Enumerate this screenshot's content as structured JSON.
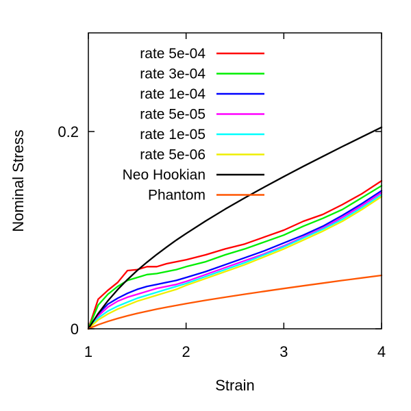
{
  "chart_data": {
    "type": "line",
    "title": "",
    "xlabel": "Strain",
    "ylabel": "Nominal Stress",
    "xlim": [
      1,
      4
    ],
    "ylim": [
      0,
      0.3
    ],
    "x_ticks": [
      {
        "value": 1,
        "label": "1"
      },
      {
        "value": 2,
        "label": "2"
      },
      {
        "value": 3,
        "label": "3"
      },
      {
        "value": 4,
        "label": "4"
      }
    ],
    "y_ticks": [
      {
        "value": 0,
        "label": "0"
      },
      {
        "value": 0.2,
        "label": "0.2"
      }
    ],
    "grid": false,
    "legend_position": "top-left",
    "series": [
      {
        "name": "rate 5e-04",
        "color": "#ff0000",
        "x": [
          1,
          1.1,
          1.2,
          1.3,
          1.4,
          1.5,
          1.6,
          1.7,
          1.8,
          1.9,
          2.0,
          2.2,
          2.4,
          2.6,
          2.8,
          3.0,
          3.2,
          3.4,
          3.6,
          3.8,
          4.0
        ],
        "y": [
          0,
          0.03,
          0.039,
          0.047,
          0.059,
          0.06,
          0.063,
          0.063,
          0.066,
          0.068,
          0.07,
          0.075,
          0.081,
          0.086,
          0.093,
          0.1,
          0.109,
          0.116,
          0.126,
          0.137,
          0.15
        ]
      },
      {
        "name": "rate 3e-04",
        "color": "#00ee00",
        "x": [
          1,
          1.1,
          1.2,
          1.3,
          1.4,
          1.5,
          1.6,
          1.7,
          1.8,
          1.9,
          2.0,
          2.2,
          2.4,
          2.6,
          2.8,
          3.0,
          3.2,
          3.4,
          3.6,
          3.8,
          4.0
        ],
        "y": [
          0,
          0.024,
          0.035,
          0.043,
          0.049,
          0.052,
          0.055,
          0.056,
          0.058,
          0.06,
          0.063,
          0.068,
          0.075,
          0.081,
          0.088,
          0.095,
          0.104,
          0.112,
          0.121,
          0.133,
          0.145
        ]
      },
      {
        "name": "rate 1e-04",
        "color": "#0000ff",
        "x": [
          1,
          1.1,
          1.2,
          1.3,
          1.4,
          1.5,
          1.6,
          1.7,
          1.8,
          1.9,
          2.0,
          2.2,
          2.4,
          2.6,
          2.8,
          3.0,
          3.2,
          3.4,
          3.6,
          3.8,
          4.0
        ],
        "y": [
          0,
          0.015,
          0.025,
          0.031,
          0.036,
          0.04,
          0.043,
          0.045,
          0.047,
          0.049,
          0.052,
          0.058,
          0.065,
          0.072,
          0.079,
          0.087,
          0.095,
          0.104,
          0.115,
          0.127,
          0.14
        ]
      },
      {
        "name": "rate 5e-05",
        "color": "#ff00ff",
        "x": [
          1,
          1.1,
          1.2,
          1.3,
          1.4,
          1.5,
          1.6,
          1.7,
          1.8,
          1.9,
          2.0,
          2.2,
          2.4,
          2.6,
          2.8,
          3.0,
          3.2,
          3.4,
          3.6,
          3.8,
          4.0
        ],
        "y": [
          0,
          0.013,
          0.022,
          0.028,
          0.032,
          0.035,
          0.038,
          0.041,
          0.043,
          0.045,
          0.048,
          0.055,
          0.062,
          0.069,
          0.076,
          0.084,
          0.093,
          0.102,
          0.113,
          0.125,
          0.138
        ]
      },
      {
        "name": "rate 1e-05",
        "color": "#00ffff",
        "x": [
          1,
          1.1,
          1.2,
          1.3,
          1.4,
          1.5,
          1.6,
          1.7,
          1.8,
          1.9,
          2.0,
          2.2,
          2.4,
          2.6,
          2.8,
          3.0,
          3.2,
          3.4,
          3.6,
          3.8,
          4.0
        ],
        "y": [
          0,
          0.011,
          0.018,
          0.023,
          0.027,
          0.031,
          0.034,
          0.037,
          0.04,
          0.043,
          0.046,
          0.053,
          0.06,
          0.067,
          0.075,
          0.083,
          0.092,
          0.101,
          0.111,
          0.123,
          0.136
        ]
      },
      {
        "name": "rate 5e-06",
        "color": "#eeee00",
        "x": [
          1,
          1.1,
          1.2,
          1.3,
          1.4,
          1.5,
          1.6,
          1.7,
          1.8,
          1.9,
          2.0,
          2.2,
          2.4,
          2.6,
          2.8,
          3.0,
          3.2,
          3.4,
          3.6,
          3.8,
          4.0
        ],
        "y": [
          0,
          0.009,
          0.015,
          0.02,
          0.024,
          0.028,
          0.031,
          0.034,
          0.037,
          0.04,
          0.044,
          0.051,
          0.058,
          0.065,
          0.073,
          0.081,
          0.09,
          0.099,
          0.109,
          0.121,
          0.134
        ]
      },
      {
        "name": "Neo Hookian",
        "color": "#000000",
        "x": [
          1,
          1.1,
          1.2,
          1.3,
          1.4,
          1.5,
          1.6,
          1.7,
          1.8,
          1.9,
          2.0,
          2.2,
          2.4,
          2.6,
          2.8,
          3.0,
          3.2,
          3.4,
          3.6,
          3.8,
          4.0
        ],
        "y": [
          0,
          0.0154,
          0.0284,
          0.0398,
          0.0499,
          0.0591,
          0.0675,
          0.0754,
          0.0828,
          0.0899,
          0.0966,
          0.1093,
          0.1213,
          0.1327,
          0.1437,
          0.1543,
          0.1647,
          0.1748,
          0.1848,
          0.1946,
          0.2043
        ]
      },
      {
        "name": "Phantom",
        "color": "#ff5500",
        "x": [
          1,
          1.1,
          1.2,
          1.3,
          1.4,
          1.5,
          1.6,
          1.7,
          1.8,
          1.9,
          2.0,
          2.2,
          2.4,
          2.6,
          2.8,
          3.0,
          3.2,
          3.4,
          3.6,
          3.8,
          4.0
        ],
        "y": [
          0,
          0.0041,
          0.0075,
          0.0105,
          0.0132,
          0.0156,
          0.0178,
          0.0199,
          0.0219,
          0.0237,
          0.0255,
          0.0289,
          0.032,
          0.0351,
          0.038,
          0.0408,
          0.0436,
          0.0463,
          0.049,
          0.0516,
          0.0542
        ]
      }
    ]
  }
}
